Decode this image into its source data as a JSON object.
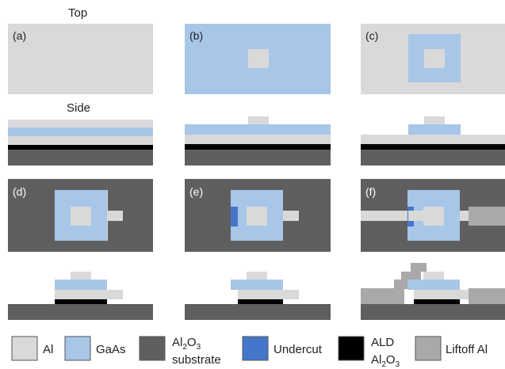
{
  "colors": {
    "al": "#d9d9d9",
    "gaas": "#a8c6e8",
    "substrate": "#5f5f5f",
    "undercut": "#4477cc",
    "ald": "#000000",
    "liftoff": "#a9a9a9"
  },
  "headers": {
    "top": "Top",
    "side": "Side"
  },
  "panels": {
    "a": "(a)",
    "b": "(b)",
    "c": "(c)",
    "d": "(d)",
    "e": "(e)",
    "f": "(f)"
  },
  "legend": {
    "al": "Al",
    "gaas": "GaAs",
    "substrate_formula": [
      "Al",
      "2",
      "O",
      "3"
    ],
    "substrate_word": "substrate",
    "undercut": "Undercut",
    "ald_word": "ALD",
    "ald_formula": [
      "Al",
      "2",
      "O",
      "3"
    ],
    "liftoff": "Liftoff Al"
  }
}
